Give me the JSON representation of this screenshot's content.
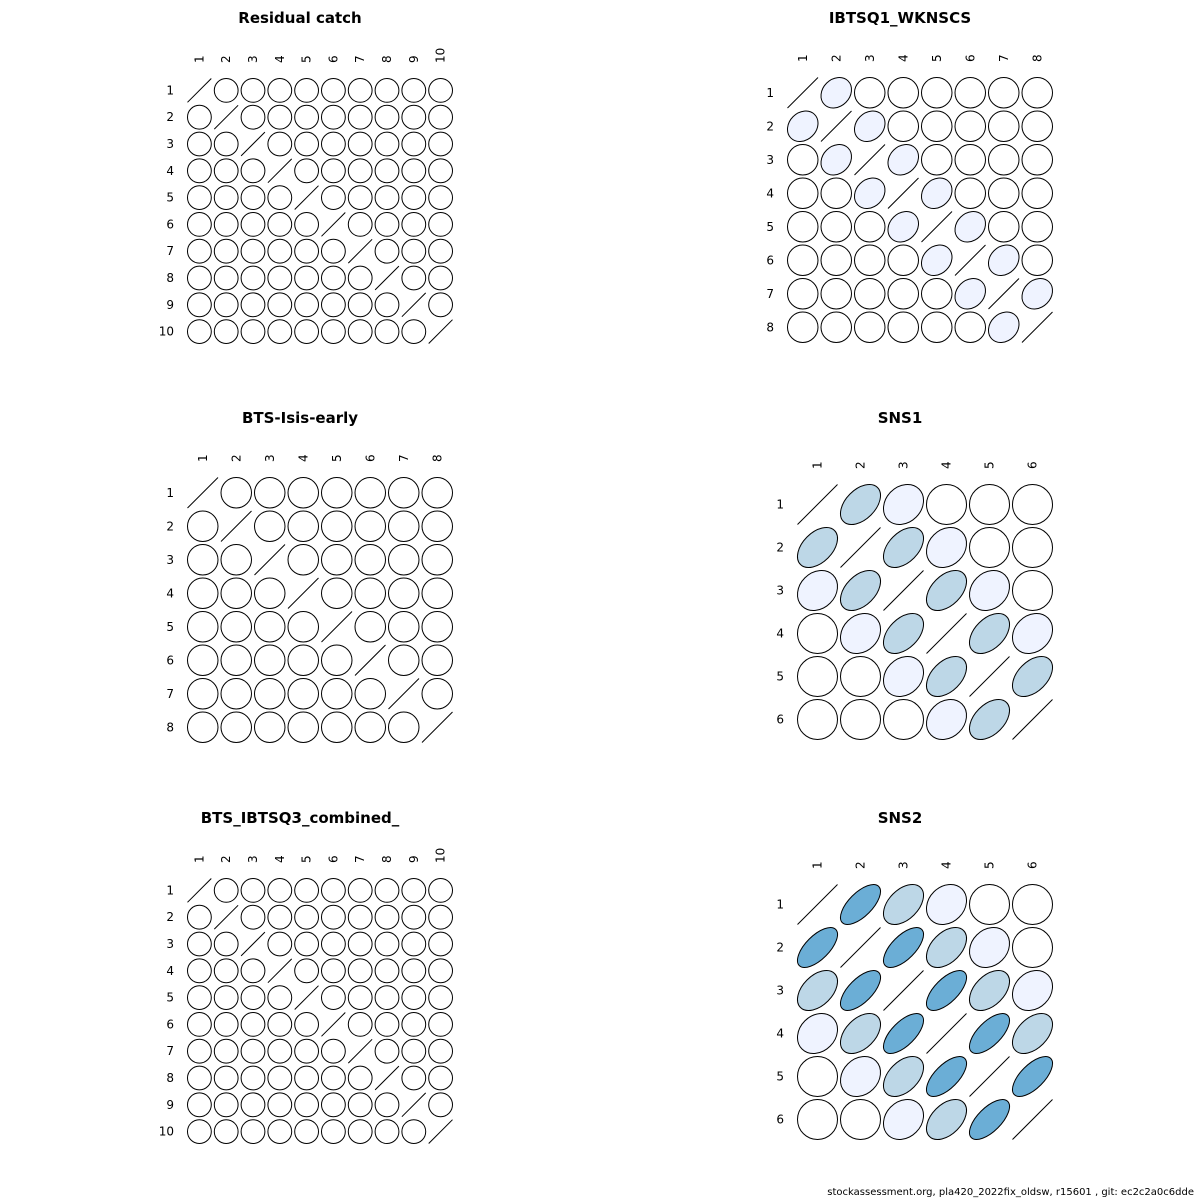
{
  "footer": "stockassessment.org, pla420_2022fix_oldsw, r15601 , git: ec2c2a0c6dde",
  "chart_data": [
    {
      "type": "correlation-ellipse",
      "title": "Residual catch",
      "labels": [
        "1",
        "2",
        "3",
        "4",
        "5",
        "6",
        "7",
        "8",
        "9",
        "10"
      ],
      "lag1": 0,
      "lag2": 0,
      "lag3": 0
    },
    {
      "type": "correlation-ellipse",
      "title": "IBTSQ1_WKNSCS",
      "labels": [
        "1",
        "2",
        "3",
        "4",
        "5",
        "6",
        "7",
        "8"
      ],
      "lag1": 0.2,
      "lag2": 0,
      "lag3": 0
    },
    {
      "type": "correlation-ellipse",
      "title": "BTS-Isis-early",
      "labels": [
        "1",
        "2",
        "3",
        "4",
        "5",
        "6",
        "7",
        "8"
      ],
      "lag1": 0,
      "lag2": 0,
      "lag3": 0
    },
    {
      "type": "correlation-ellipse",
      "title": "SNS1",
      "labels": [
        "1",
        "2",
        "3",
        "4",
        "5",
        "6"
      ],
      "lag1": 0.45,
      "lag2": 0.2,
      "lag3": 0
    },
    {
      "type": "correlation-ellipse",
      "title": "BTS_IBTSQ3_combined_",
      "labels": [
        "1",
        "2",
        "3",
        "4",
        "5",
        "6",
        "7",
        "8",
        "9",
        "10"
      ],
      "lag1": 0,
      "lag2": 0,
      "lag3": 0
    },
    {
      "type": "correlation-ellipse",
      "title": "SNS2",
      "labels": [
        "1",
        "2",
        "3",
        "4",
        "5",
        "6"
      ],
      "lag1": 0.65,
      "lag2": 0.45,
      "lag3": 0.2
    }
  ],
  "colors": {
    "strong": "#6baed6",
    "medium": "#bdd7e7",
    "weak": "#eff3ff",
    "none": "#ffffff",
    "stroke": "#000000"
  }
}
